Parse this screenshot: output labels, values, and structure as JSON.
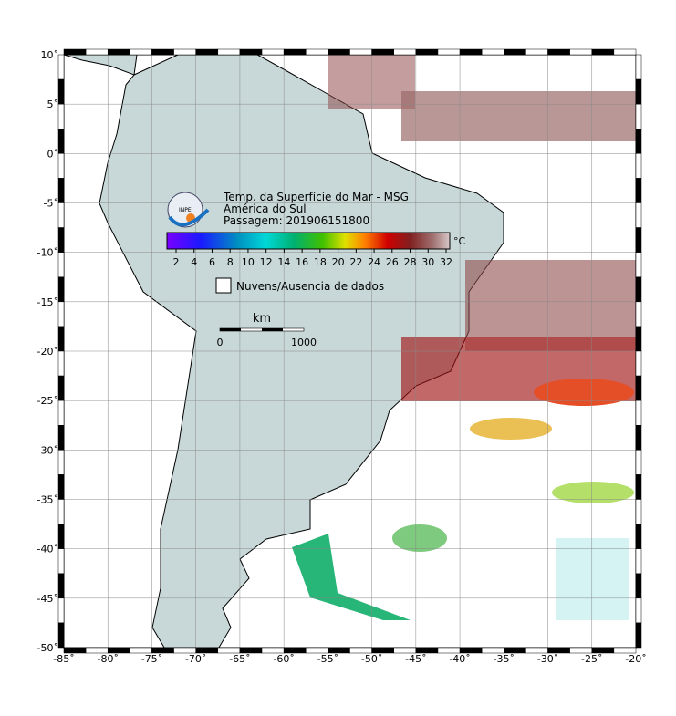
{
  "map": {
    "title": "Temp. da Superfície do Mar - MSG",
    "region": "América do Sul",
    "pass": "Passagem: 201906151800",
    "logo": "INPE",
    "colorbar_unit": "°C",
    "colorbar_labels": [
      "2",
      "4",
      "6",
      "8",
      "10",
      "12",
      "14",
      "16",
      "18",
      "20",
      "22",
      "24",
      "26",
      "28",
      "30",
      "32"
    ],
    "legend": "Nuvens/Ausencia de dados",
    "scale_unit": "km",
    "scale_labels": [
      "0",
      "1000"
    ],
    "lat_labels": [
      "10˚",
      "5˚",
      "0˚",
      "-5˚",
      "-10˚",
      "-15˚",
      "-20˚",
      "-25˚",
      "-30˚",
      "-35˚",
      "-40˚",
      "-45˚",
      "-50˚"
    ],
    "lon_labels": [
      "-85˚",
      "-80˚",
      "-75˚",
      "-70˚",
      "-65˚",
      "-60˚",
      "-55˚",
      "-50˚",
      "-45˚",
      "-40˚",
      "-35˚",
      "-30˚",
      "-25˚",
      "-20˚"
    ]
  }
}
